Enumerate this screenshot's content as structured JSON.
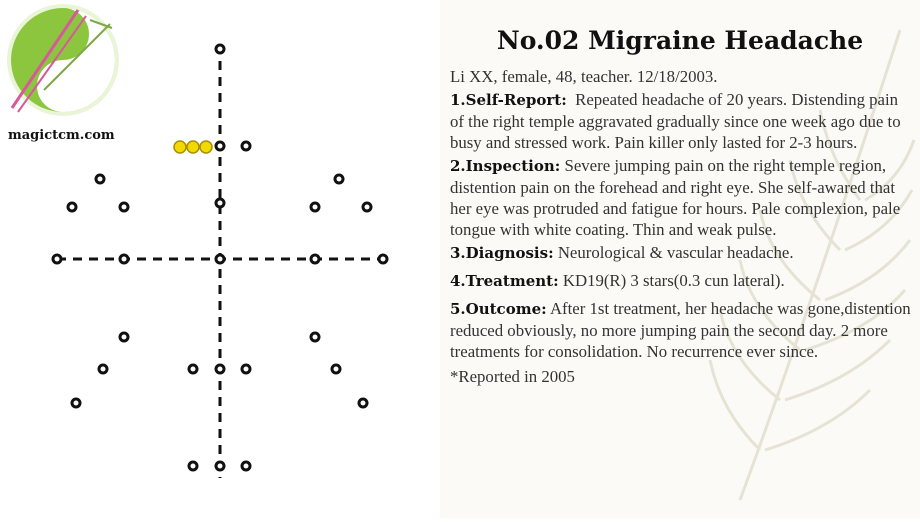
{
  "logo": {
    "site": "magictcm.com"
  },
  "title": "No.02 Migraine Headache",
  "patient": "Li XX, female, 48, teacher. 12/18/2003.",
  "sections": [
    {
      "label": "1.Self-Report:",
      "text": "Repeated headache of 20 years. Distending pain of the right temple aggravated gradually since one week ago due to busy and stressed work. Pain killer only lasted for 2-3 hours."
    },
    {
      "label": "2.Inspection:",
      "text": "Severe jumping pain on the right temple region, distention pain on the forehead and right eye. She self-awared that her eye was protruded and fatigue for hours. Pale complexion, pale tongue with white coating. Thin and weak pulse."
    },
    {
      "label": "3.Diagnosis:",
      "text": "Neurological & vascular headache."
    },
    {
      "label": "4.Treatment:",
      "text": "KD19(R) 3 stars(0.3 cun lateral)."
    },
    {
      "label": "5.Outcome:",
      "text": "After 1st treatment, her headache was gone,distention reduced obviously, no more jumping pain the second day. 2 more treatments for consolidation. No recurrence ever since."
    }
  ],
  "footnote": "*Reported in 2005",
  "colors": {
    "highlight_point": "#f2d900",
    "point_stroke": "#111111",
    "logo_green": "#8cc63f"
  }
}
